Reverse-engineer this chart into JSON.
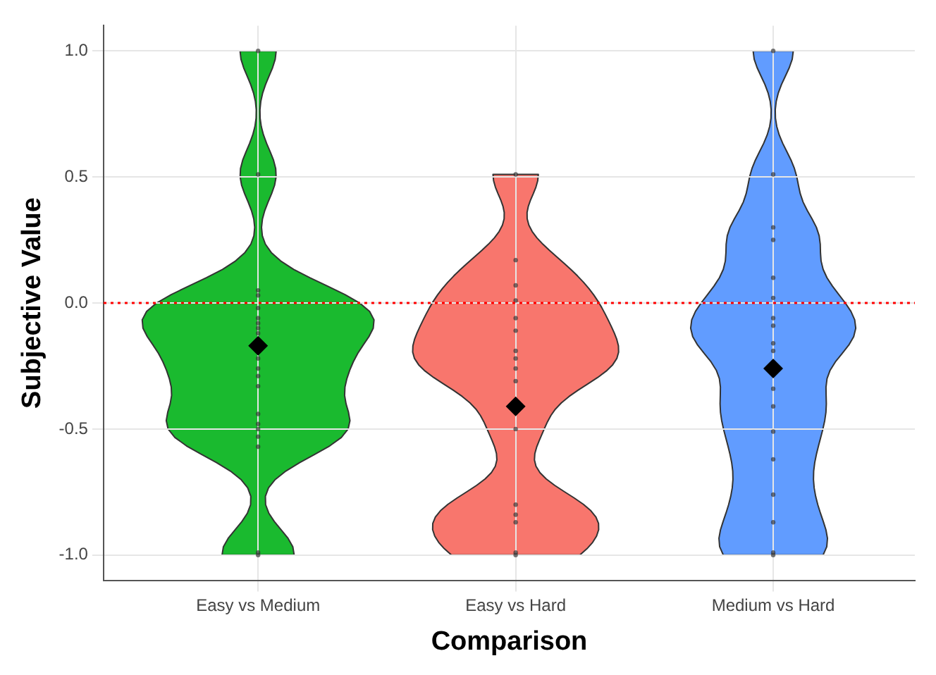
{
  "chart_data": {
    "type": "scatter",
    "xlabel": "Comparison",
    "ylabel": "Subjective Value",
    "categories": [
      "Easy vs Medium",
      "Easy vs Hard",
      "Medium vs Hard"
    ],
    "colors": [
      "#1aba2f",
      "#f8766d",
      "#619cff"
    ],
    "ylim": [
      -1.1,
      1.1
    ],
    "yticks": [
      {
        "value": -1,
        "label": "-1.0"
      },
      {
        "value": -0.5,
        "label": "-0.5"
      },
      {
        "value": 0,
        "label": "0.0"
      },
      {
        "value": 0.5,
        "label": "0.5"
      },
      {
        "value": 1,
        "label": "1.0"
      }
    ],
    "grid": true,
    "legend": false,
    "ref_lines": [
      {
        "axis": "y",
        "value": 0,
        "color": "#ff0000",
        "line_style": "dotted"
      }
    ],
    "series": [
      {
        "type": "scatter",
        "marker": "circle",
        "color": "#333333",
        "x": [
          "Easy vs Medium",
          "Easy vs Medium",
          "Easy vs Medium",
          "Easy vs Medium",
          "Easy vs Medium",
          "Easy vs Medium",
          "Easy vs Medium",
          "Easy vs Medium",
          "Easy vs Medium",
          "Easy vs Medium",
          "Easy vs Medium",
          "Easy vs Medium",
          "Easy vs Medium",
          "Easy vs Medium",
          "Easy vs Medium",
          "Easy vs Medium",
          "Easy vs Medium",
          "Easy vs Medium",
          "Easy vs Medium",
          "Easy vs Medium"
        ],
        "values": [
          1.0,
          0.51,
          0.05,
          0.03,
          -0.02,
          -0.06,
          -0.08,
          -0.1,
          -0.22,
          -0.26,
          -0.29,
          -0.33,
          -0.5,
          -0.48,
          -0.53,
          -0.57,
          -0.99,
          -1.0,
          -0.44,
          -0.12
        ]
      },
      {
        "type": "scatter",
        "marker": "circle",
        "color": "#333333",
        "x": [
          "Easy vs Hard",
          "Easy vs Hard",
          "Easy vs Hard",
          "Easy vs Hard",
          "Easy vs Hard",
          "Easy vs Hard",
          "Easy vs Hard",
          "Easy vs Hard",
          "Easy vs Hard",
          "Easy vs Hard",
          "Easy vs Hard",
          "Easy vs Hard",
          "Easy vs Hard",
          "Easy vs Hard",
          "Easy vs Hard",
          "Easy vs Hard"
        ],
        "values": [
          0.51,
          0.17,
          0.07,
          0.01,
          -0.06,
          -0.11,
          -0.19,
          -0.22,
          -0.26,
          -0.31,
          -0.5,
          -0.8,
          -0.87,
          -0.84,
          -0.99,
          -1.0
        ]
      },
      {
        "type": "scatter",
        "marker": "circle",
        "color": "#333333",
        "x": [
          "Medium vs Hard",
          "Medium vs Hard",
          "Medium vs Hard",
          "Medium vs Hard",
          "Medium vs Hard",
          "Medium vs Hard",
          "Medium vs Hard",
          "Medium vs Hard",
          "Medium vs Hard",
          "Medium vs Hard",
          "Medium vs Hard",
          "Medium vs Hard",
          "Medium vs Hard",
          "Medium vs Hard",
          "Medium vs Hard",
          "Medium vs Hard",
          "Medium vs Hard",
          "Medium vs Hard"
        ],
        "values": [
          1.0,
          0.51,
          0.25,
          0.1,
          0.02,
          -0.06,
          -0.09,
          -0.16,
          -0.19,
          -0.34,
          -0.41,
          -0.51,
          -0.62,
          -0.76,
          -0.87,
          -0.99,
          -1.0,
          0.3
        ]
      },
      {
        "type": "scatter",
        "marker": "diamond",
        "color": "#000000",
        "x": [
          "Easy vs Medium",
          "Easy vs Hard",
          "Medium vs Hard"
        ],
        "values": [
          -0.17,
          -0.41,
          -0.26
        ]
      }
    ]
  }
}
